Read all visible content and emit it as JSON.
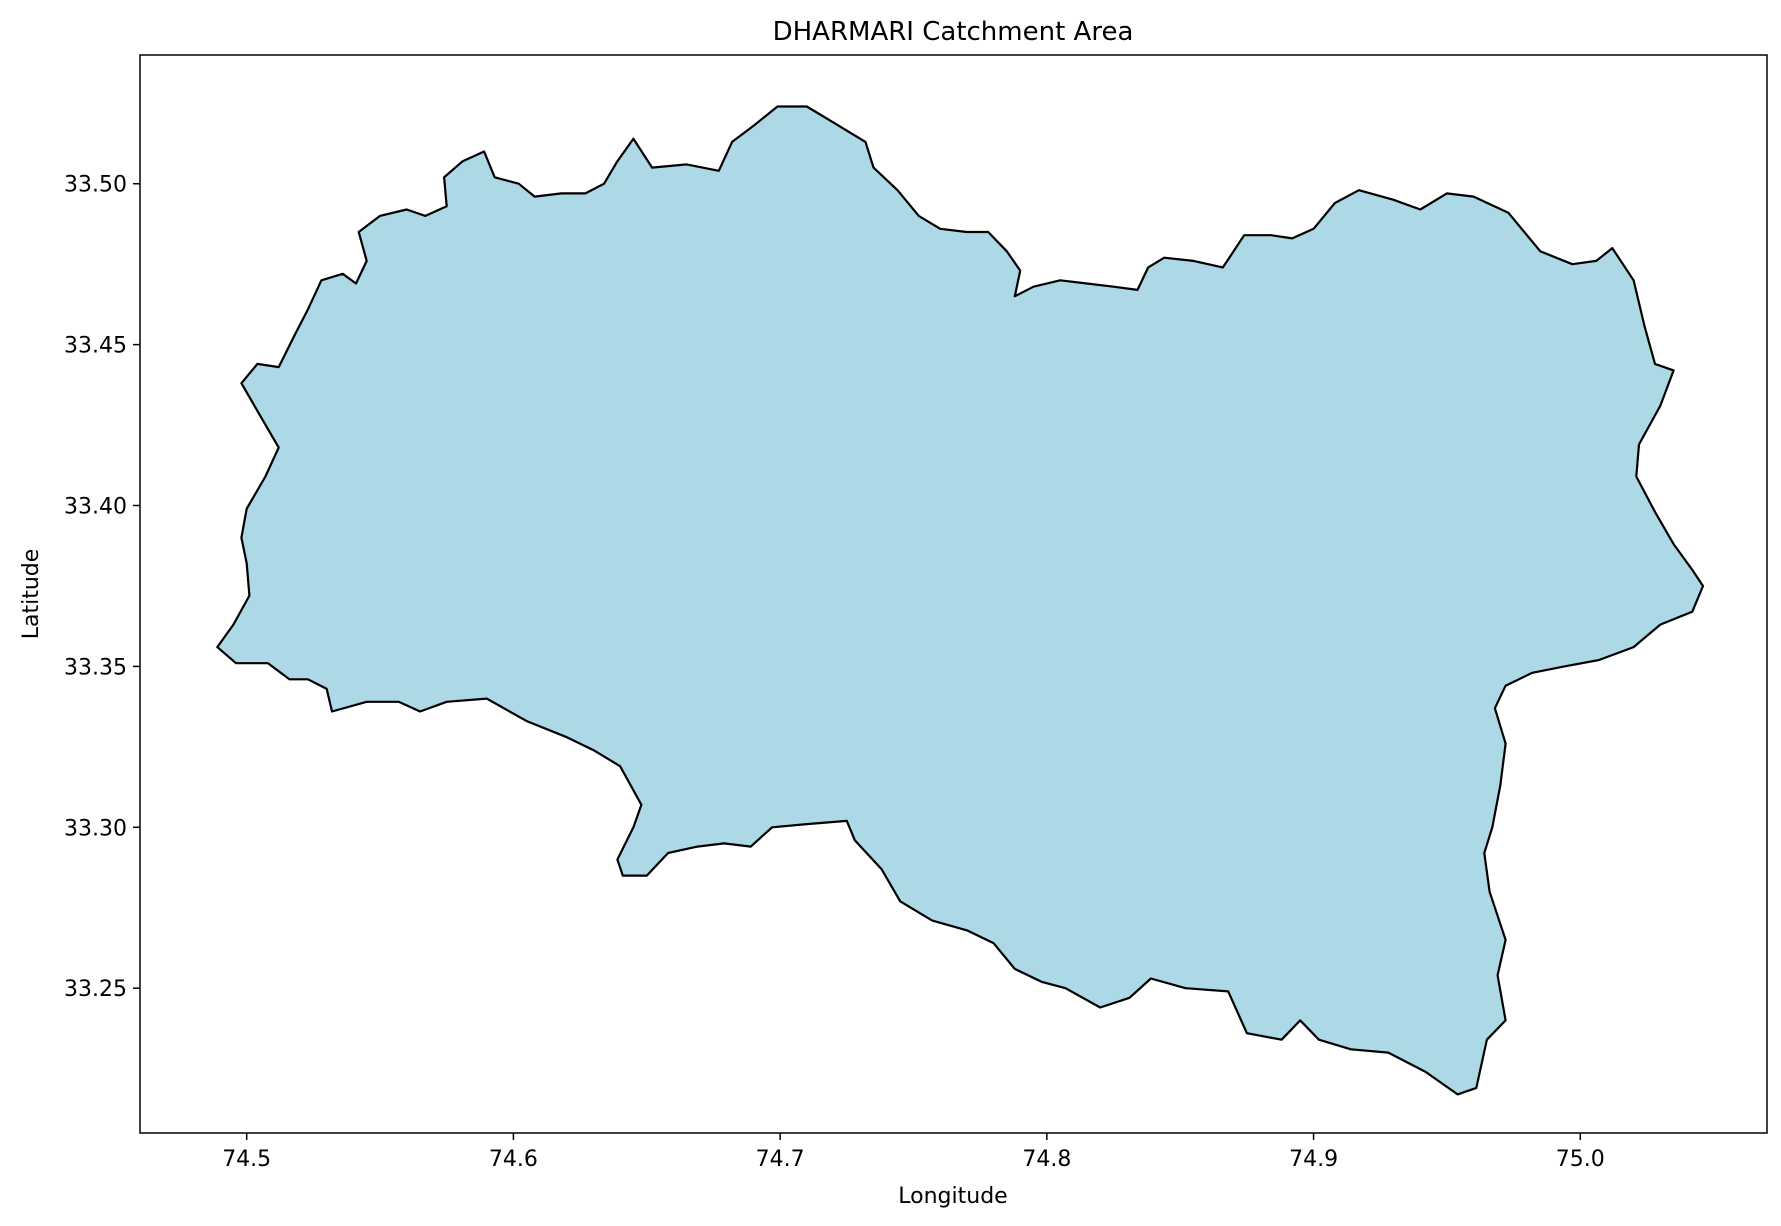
{
  "chart_data": {
    "type": "map",
    "title": "DHARMARI Catchment Area",
    "xlabel": "Longitude",
    "ylabel": "Latitude",
    "xlim": [
      74.46,
      75.07
    ],
    "ylim": [
      33.205,
      33.54
    ],
    "xticks": [
      {
        "value": 74.5,
        "label": "74.5"
      },
      {
        "value": 74.6,
        "label": "74.6"
      },
      {
        "value": 74.7,
        "label": "74.7"
      },
      {
        "value": 74.8,
        "label": "74.8"
      },
      {
        "value": 74.9,
        "label": "74.9"
      },
      {
        "value": 75.0,
        "label": "75.0"
      }
    ],
    "yticks": [
      {
        "value": 33.25,
        "label": "33.25"
      },
      {
        "value": 33.3,
        "label": "33.30"
      },
      {
        "value": 33.35,
        "label": "33.35"
      },
      {
        "value": 33.4,
        "label": "33.40"
      },
      {
        "value": 33.45,
        "label": "33.45"
      },
      {
        "value": 33.5,
        "label": "33.50"
      }
    ],
    "grid": false,
    "fill_color": "#add8e6",
    "edge_color": "#000000",
    "boundary": [
      [
        74.489,
        33.356
      ],
      [
        74.495,
        33.363
      ],
      [
        74.501,
        33.372
      ],
      [
        74.5,
        33.382
      ],
      [
        74.498,
        33.39
      ],
      [
        74.5,
        33.399
      ],
      [
        74.507,
        33.409
      ],
      [
        74.512,
        33.418
      ],
      [
        74.505,
        33.428
      ],
      [
        74.498,
        33.438
      ],
      [
        74.504,
        33.444
      ],
      [
        74.512,
        33.443
      ],
      [
        74.518,
        33.453
      ],
      [
        74.523,
        33.461
      ],
      [
        74.528,
        33.47
      ],
      [
        74.536,
        33.472
      ],
      [
        74.541,
        33.469
      ],
      [
        74.545,
        33.476
      ],
      [
        74.542,
        33.485
      ],
      [
        74.55,
        33.49
      ],
      [
        74.56,
        33.492
      ],
      [
        74.567,
        33.49
      ],
      [
        74.575,
        33.493
      ],
      [
        74.574,
        33.502
      ],
      [
        74.581,
        33.507
      ],
      [
        74.589,
        33.51
      ],
      [
        74.593,
        33.502
      ],
      [
        74.602,
        33.5
      ],
      [
        74.608,
        33.496
      ],
      [
        74.618,
        33.497
      ],
      [
        74.627,
        33.497
      ],
      [
        74.634,
        33.5
      ],
      [
        74.639,
        33.507
      ],
      [
        74.645,
        33.514
      ],
      [
        74.652,
        33.505
      ],
      [
        74.665,
        33.506
      ],
      [
        74.677,
        33.504
      ],
      [
        74.682,
        33.513
      ],
      [
        74.69,
        33.518
      ],
      [
        74.699,
        33.524
      ],
      [
        74.71,
        33.524
      ],
      [
        74.72,
        33.519
      ],
      [
        74.732,
        33.513
      ],
      [
        74.735,
        33.505
      ],
      [
        74.744,
        33.498
      ],
      [
        74.752,
        33.49
      ],
      [
        74.76,
        33.486
      ],
      [
        74.77,
        33.485
      ],
      [
        74.778,
        33.485
      ],
      [
        74.785,
        33.479
      ],
      [
        74.79,
        33.473
      ],
      [
        74.788,
        33.465
      ],
      [
        74.795,
        33.468
      ],
      [
        74.805,
        33.47
      ],
      [
        74.815,
        33.469
      ],
      [
        74.825,
        33.468
      ],
      [
        74.834,
        33.467
      ],
      [
        74.838,
        33.474
      ],
      [
        74.844,
        33.477
      ],
      [
        74.855,
        33.476
      ],
      [
        74.866,
        33.474
      ],
      [
        74.874,
        33.484
      ],
      [
        74.884,
        33.484
      ],
      [
        74.892,
        33.483
      ],
      [
        74.9,
        33.486
      ],
      [
        74.908,
        33.494
      ],
      [
        74.917,
        33.498
      ],
      [
        74.93,
        33.495
      ],
      [
        74.94,
        33.492
      ],
      [
        74.95,
        33.497
      ],
      [
        74.96,
        33.496
      ],
      [
        74.973,
        33.491
      ],
      [
        74.985,
        33.479
      ],
      [
        74.997,
        33.475
      ],
      [
        75.006,
        33.476
      ],
      [
        75.012,
        33.48
      ],
      [
        75.02,
        33.47
      ],
      [
        75.024,
        33.456
      ],
      [
        75.028,
        33.444
      ],
      [
        75.035,
        33.442
      ],
      [
        75.03,
        33.431
      ],
      [
        75.022,
        33.419
      ],
      [
        75.021,
        33.409
      ],
      [
        75.028,
        33.398
      ],
      [
        75.035,
        33.388
      ],
      [
        75.042,
        33.38
      ],
      [
        75.046,
        33.375
      ],
      [
        75.042,
        33.367
      ],
      [
        75.03,
        33.363
      ],
      [
        75.02,
        33.356
      ],
      [
        75.007,
        33.352
      ],
      [
        74.994,
        33.35
      ],
      [
        74.982,
        33.348
      ],
      [
        74.972,
        33.344
      ],
      [
        74.968,
        33.337
      ],
      [
        74.972,
        33.326
      ],
      [
        74.97,
        33.313
      ],
      [
        74.967,
        33.3
      ],
      [
        74.964,
        33.292
      ],
      [
        74.966,
        33.28
      ],
      [
        74.972,
        33.265
      ],
      [
        74.969,
        33.254
      ],
      [
        74.972,
        33.24
      ],
      [
        74.965,
        33.234
      ],
      [
        74.961,
        33.219
      ],
      [
        74.954,
        33.217
      ],
      [
        74.942,
        33.224
      ],
      [
        74.928,
        33.23
      ],
      [
        74.914,
        33.231
      ],
      [
        74.902,
        33.234
      ],
      [
        74.895,
        33.24
      ],
      [
        74.888,
        33.234
      ],
      [
        74.875,
        33.236
      ],
      [
        74.868,
        33.249
      ],
      [
        74.852,
        33.25
      ],
      [
        74.839,
        33.253
      ],
      [
        74.831,
        33.247
      ],
      [
        74.82,
        33.244
      ],
      [
        74.807,
        33.25
      ],
      [
        74.798,
        33.252
      ],
      [
        74.788,
        33.256
      ],
      [
        74.78,
        33.264
      ],
      [
        74.77,
        33.268
      ],
      [
        74.757,
        33.271
      ],
      [
        74.745,
        33.277
      ],
      [
        74.738,
        33.287
      ],
      [
        74.728,
        33.296
      ],
      [
        74.725,
        33.302
      ],
      [
        74.71,
        33.301
      ],
      [
        74.697,
        33.3
      ],
      [
        74.689,
        33.294
      ],
      [
        74.679,
        33.295
      ],
      [
        74.669,
        33.294
      ],
      [
        74.658,
        33.292
      ],
      [
        74.65,
        33.285
      ],
      [
        74.641,
        33.285
      ],
      [
        74.639,
        33.29
      ],
      [
        74.645,
        33.3
      ],
      [
        74.648,
        33.307
      ],
      [
        74.64,
        33.319
      ],
      [
        74.63,
        33.324
      ],
      [
        74.62,
        33.328
      ],
      [
        74.605,
        33.333
      ],
      [
        74.59,
        33.34
      ],
      [
        74.575,
        33.339
      ],
      [
        74.565,
        33.336
      ],
      [
        74.557,
        33.339
      ],
      [
        74.545,
        33.339
      ],
      [
        74.532,
        33.336
      ],
      [
        74.53,
        33.343
      ],
      [
        74.523,
        33.346
      ],
      [
        74.516,
        33.346
      ],
      [
        74.508,
        33.351
      ],
      [
        74.496,
        33.351
      ],
      [
        74.489,
        33.356
      ]
    ]
  }
}
